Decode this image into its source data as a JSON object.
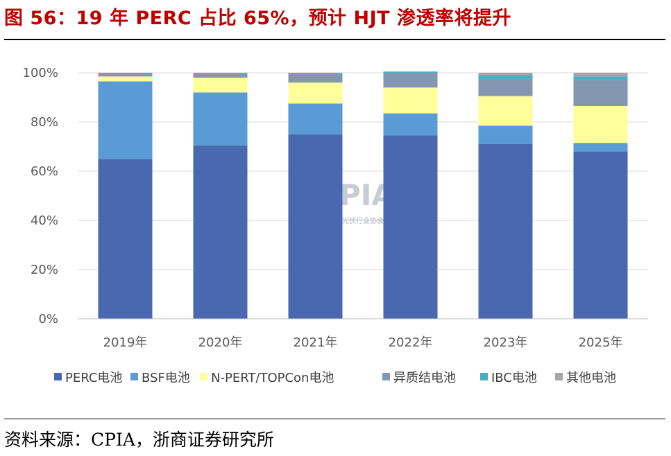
{
  "title": "图 56：19 年 PERC 占比 65%，预计 HJT 渗透率将提升",
  "source": "资料来源：CPIA，浙商证券研究所",
  "watermark": "CPIA",
  "watermark_sub": "中国光伏行业协会",
  "chart_data": {
    "type": "bar",
    "stacked": true,
    "categories": [
      "2019年",
      "2020年",
      "2021年",
      "2022年",
      "2023年",
      "2025年"
    ],
    "ylim": [
      0,
      100
    ],
    "yticks": [
      0,
      20,
      40,
      60,
      80,
      100
    ],
    "ytick_labels": [
      "0%",
      "20%",
      "40%",
      "60%",
      "80%",
      "100%"
    ],
    "series": [
      {
        "name": "PERC电池",
        "color": "#4a68b0",
        "values": [
          65,
          70.5,
          75,
          74.5,
          71,
          68
        ]
      },
      {
        "name": "BSF电池",
        "color": "#5b9bd5",
        "values": [
          31.5,
          21.5,
          12.5,
          9,
          7.5,
          3.5
        ]
      },
      {
        "name": "N-PERT/TOPCon电池",
        "color": "#ffff99",
        "values": [
          2,
          6,
          8.5,
          10.5,
          12,
          15
        ]
      },
      {
        "name": "异质结电池",
        "color": "#8497b0",
        "values": [
          1,
          1.5,
          3.5,
          6,
          7,
          10.5
        ]
      },
      {
        "name": "IBC电池",
        "color": "#4bacc6",
        "values": [
          0.5,
          0.5,
          0.5,
          0.5,
          1.5,
          1.5
        ]
      },
      {
        "name": "其他电池",
        "color": "#a5a5a5",
        "values": [
          0,
          0,
          0,
          0,
          1,
          1.5
        ]
      }
    ]
  }
}
